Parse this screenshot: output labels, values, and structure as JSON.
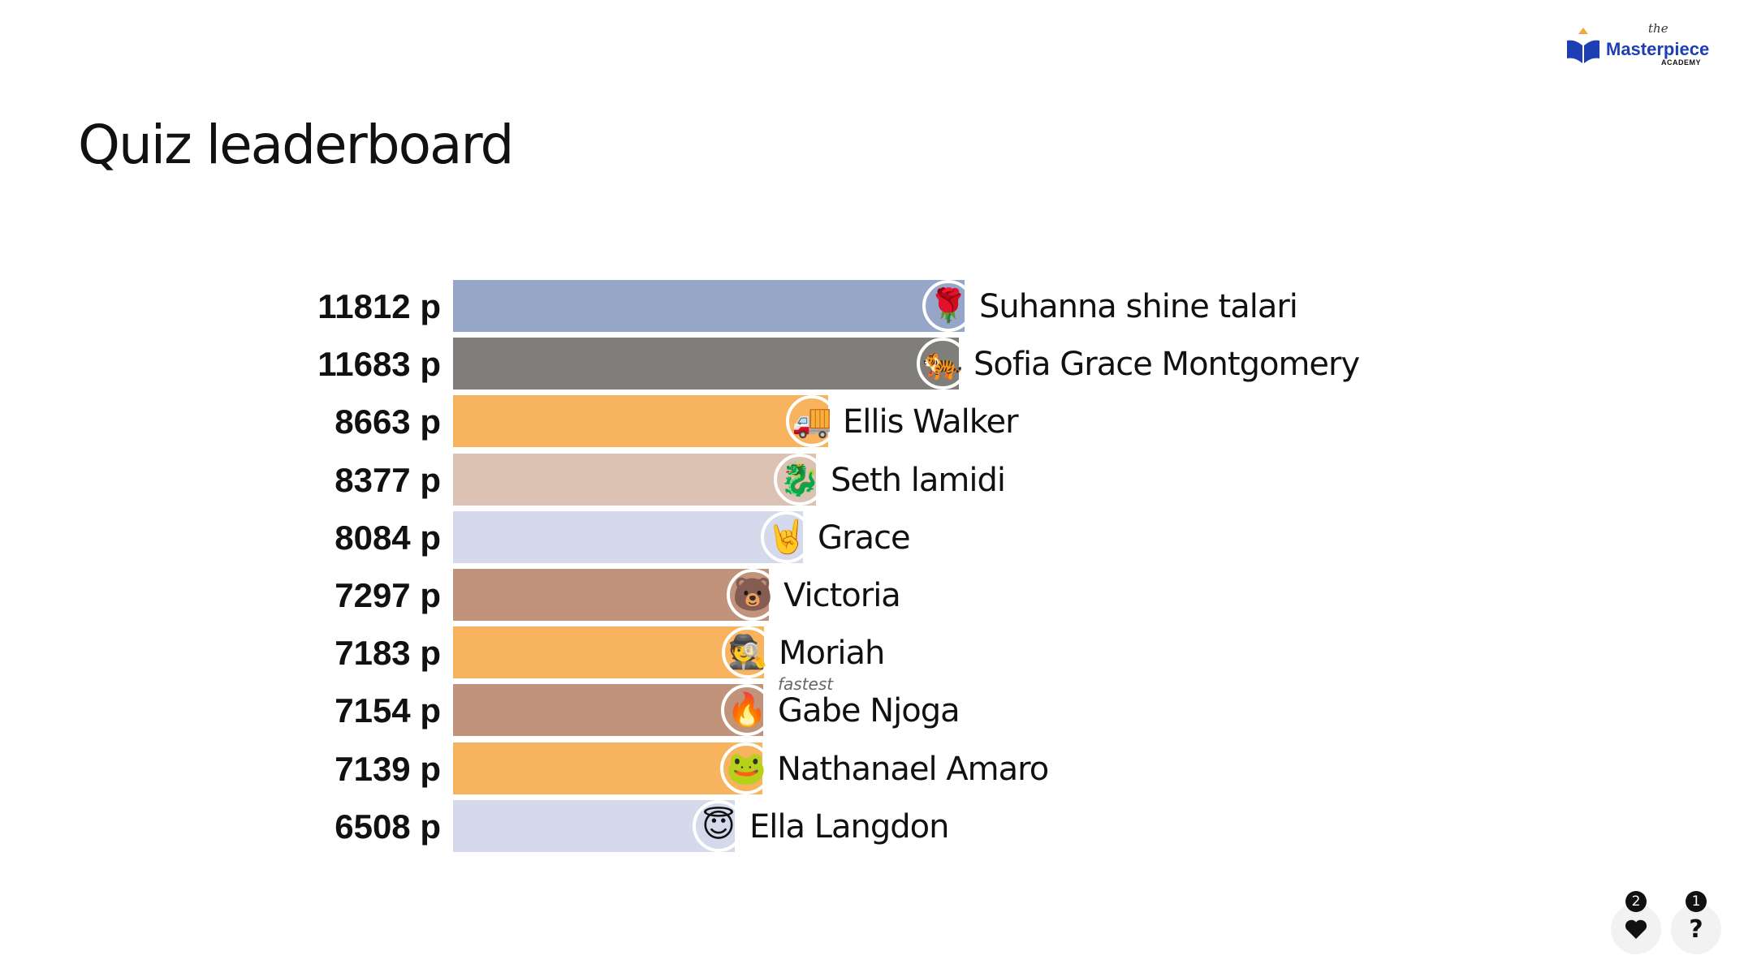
{
  "header": {
    "logo_the": "the",
    "logo_name": "Masterpiece",
    "logo_sub": "ACADEMY",
    "title": "Quiz leaderboard"
  },
  "leaderboard": {
    "max_score": 11812,
    "players": [
      {
        "score": "11812 p",
        "points": 11812,
        "name": "Suhanna shine talari",
        "avatar": "🌹",
        "avatar_icon": "rose-icon",
        "color": "#95a6c8"
      },
      {
        "score": "11683 p",
        "points": 11683,
        "name": "Sofia Grace Montgomery",
        "avatar": "🐅",
        "avatar_icon": "tiger-icon",
        "color": "#7f7e7b"
      },
      {
        "score": "8663 p",
        "points": 8663,
        "name": "Ellis Walker",
        "avatar": "🚚",
        "avatar_icon": "truck-icon",
        "color": "#f8b35e"
      },
      {
        "score": "8377 p",
        "points": 8377,
        "name": "Seth lamidi",
        "avatar": "🐉",
        "avatar_icon": "dragon-icon",
        "color": "#dbc2b2"
      },
      {
        "score": "8084 p",
        "points": 8084,
        "name": "Grace",
        "avatar": "🤘",
        "avatar_icon": "rock-hand-icon",
        "color": "#d4d9eb"
      },
      {
        "score": "7297 p",
        "points": 7297,
        "name": "Victoria",
        "avatar": "🐻",
        "avatar_icon": "bear-icon",
        "color": "#c0937a"
      },
      {
        "score": "7183 p",
        "points": 7183,
        "name": "Moriah",
        "avatar": "🕵️",
        "avatar_icon": "spy-icon",
        "color": "#f8b35e"
      },
      {
        "score": "7154 p",
        "points": 7154,
        "name": "Gabe Njoga",
        "avatar": "🔥",
        "avatar_icon": "fire-icon",
        "color": "#c0937a",
        "badge": "fastest"
      },
      {
        "score": "7139 p",
        "points": 7139,
        "name": "Nathanael Amaro",
        "avatar": "🐸",
        "avatar_icon": "frog-icon",
        "color": "#f8b35e"
      },
      {
        "score": "6508 p",
        "points": 6508,
        "name": "Ella Langdon",
        "avatar": "😇",
        "avatar_icon": "angel-icon",
        "color": "#d4d9eb"
      }
    ]
  },
  "reactions": {
    "like_count": "2",
    "like_icon": "heart-icon",
    "question_count": "1",
    "question_icon": "question-icon",
    "question_label": "?"
  }
}
